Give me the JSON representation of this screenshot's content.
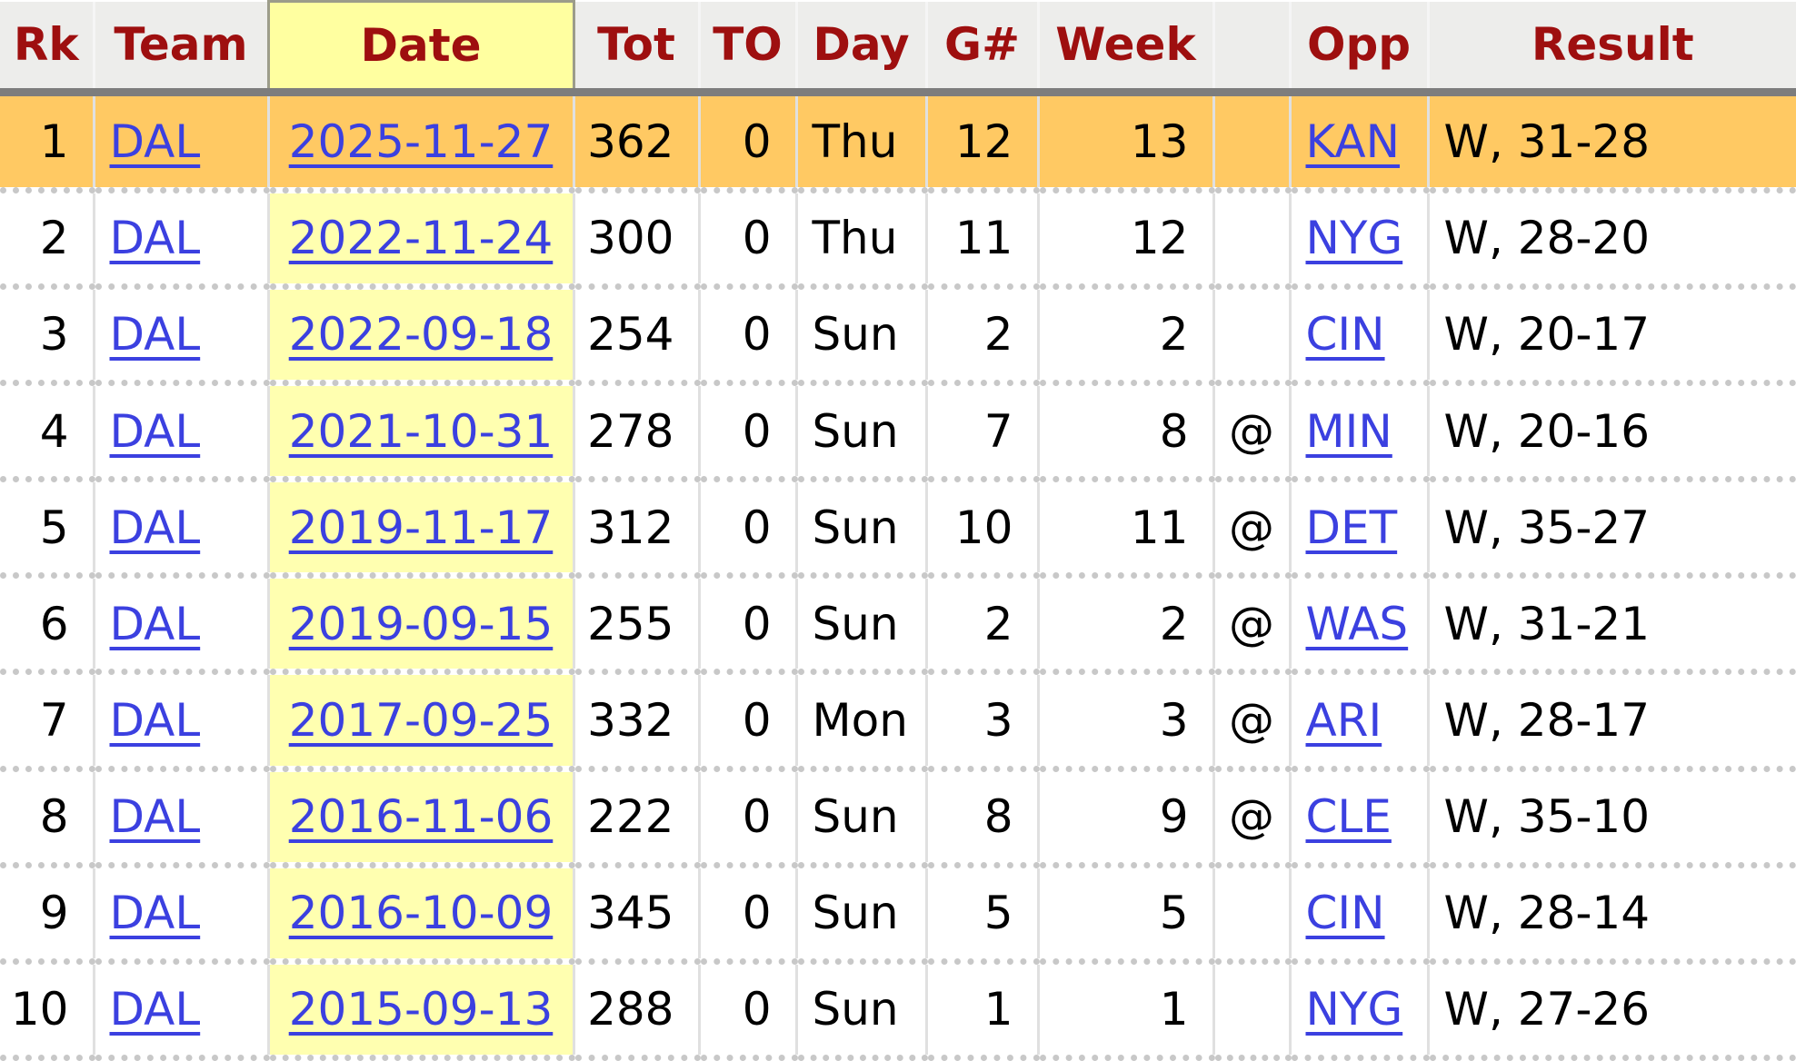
{
  "table": {
    "columns": [
      {
        "key": "rank",
        "label": "Rk",
        "align": "ar",
        "link": false,
        "sorted": false
      },
      {
        "key": "team",
        "label": "Team",
        "align": "al",
        "link": true,
        "sorted": false
      },
      {
        "key": "date",
        "label": "Date",
        "align": "ac",
        "link": true,
        "sorted": true
      },
      {
        "key": "tot",
        "label": "Tot",
        "align": "ar",
        "link": false,
        "sorted": false
      },
      {
        "key": "to",
        "label": "TO",
        "align": "ar",
        "link": false,
        "sorted": false
      },
      {
        "key": "day",
        "label": "Day",
        "align": "al",
        "link": false,
        "sorted": false
      },
      {
        "key": "game_num",
        "label": "G#",
        "align": "ar",
        "link": false,
        "sorted": false
      },
      {
        "key": "week",
        "label": "Week",
        "align": "ar",
        "link": false,
        "sorted": false
      },
      {
        "key": "at",
        "label": "",
        "align": "ac",
        "link": false,
        "sorted": false
      },
      {
        "key": "opp",
        "label": "Opp",
        "align": "al",
        "link": true,
        "sorted": false
      },
      {
        "key": "result",
        "label": "Result",
        "align": "al",
        "link": false,
        "sorted": false
      }
    ],
    "rows": [
      {
        "rank": "1",
        "team": "DAL",
        "date": "2025-11-27",
        "tot": "362",
        "to": "0",
        "day": "Thu",
        "game_num": "12",
        "week": "13",
        "at": "",
        "opp": "KAN",
        "result": "W, 31-28",
        "highlighted": true
      },
      {
        "rank": "2",
        "team": "DAL",
        "date": "2022-11-24",
        "tot": "300",
        "to": "0",
        "day": "Thu",
        "game_num": "11",
        "week": "12",
        "at": "",
        "opp": "NYG",
        "result": "W, 28-20",
        "highlighted": false
      },
      {
        "rank": "3",
        "team": "DAL",
        "date": "2022-09-18",
        "tot": "254",
        "to": "0",
        "day": "Sun",
        "game_num": "2",
        "week": "2",
        "at": "",
        "opp": "CIN",
        "result": "W, 20-17",
        "highlighted": false
      },
      {
        "rank": "4",
        "team": "DAL",
        "date": "2021-10-31",
        "tot": "278",
        "to": "0",
        "day": "Sun",
        "game_num": "7",
        "week": "8",
        "at": "@",
        "opp": "MIN",
        "result": "W, 20-16",
        "highlighted": false
      },
      {
        "rank": "5",
        "team": "DAL",
        "date": "2019-11-17",
        "tot": "312",
        "to": "0",
        "day": "Sun",
        "game_num": "10",
        "week": "11",
        "at": "@",
        "opp": "DET",
        "result": "W, 35-27",
        "highlighted": false
      },
      {
        "rank": "6",
        "team": "DAL",
        "date": "2019-09-15",
        "tot": "255",
        "to": "0",
        "day": "Sun",
        "game_num": "2",
        "week": "2",
        "at": "@",
        "opp": "WAS",
        "result": "W, 31-21",
        "highlighted": false
      },
      {
        "rank": "7",
        "team": "DAL",
        "date": "2017-09-25",
        "tot": "332",
        "to": "0",
        "day": "Mon",
        "game_num": "3",
        "week": "3",
        "at": "@",
        "opp": "ARI",
        "result": "W, 28-17",
        "highlighted": false
      },
      {
        "rank": "8",
        "team": "DAL",
        "date": "2016-11-06",
        "tot": "222",
        "to": "0",
        "day": "Sun",
        "game_num": "8",
        "week": "9",
        "at": "@",
        "opp": "CLE",
        "result": "W, 35-10",
        "highlighted": false
      },
      {
        "rank": "9",
        "team": "DAL",
        "date": "2016-10-09",
        "tot": "345",
        "to": "0",
        "day": "Sun",
        "game_num": "5",
        "week": "5",
        "at": "",
        "opp": "CIN",
        "result": "W, 28-14",
        "highlighted": false
      },
      {
        "rank": "10",
        "team": "DAL",
        "date": "2015-09-13",
        "tot": "288",
        "to": "0",
        "day": "Sun",
        "game_num": "1",
        "week": "1",
        "at": "",
        "opp": "NYG",
        "result": "W, 27-26",
        "highlighted": false
      }
    ]
  },
  "colors": {
    "header_bg": "#ededeb",
    "header_text": "#9e0f0f",
    "header_border": "#7d7d7d",
    "header_separator": "#f5f5f5",
    "sorted_outline": "#9c9c8a",
    "date_header_bg": "#ffffa0",
    "date_col_bg": "#ffffb0",
    "highlight_row_bg": "#ffc963",
    "link": "#3b40e0",
    "col_separator": "#e0e0e0",
    "row_separator": "#c8c8c8"
  }
}
